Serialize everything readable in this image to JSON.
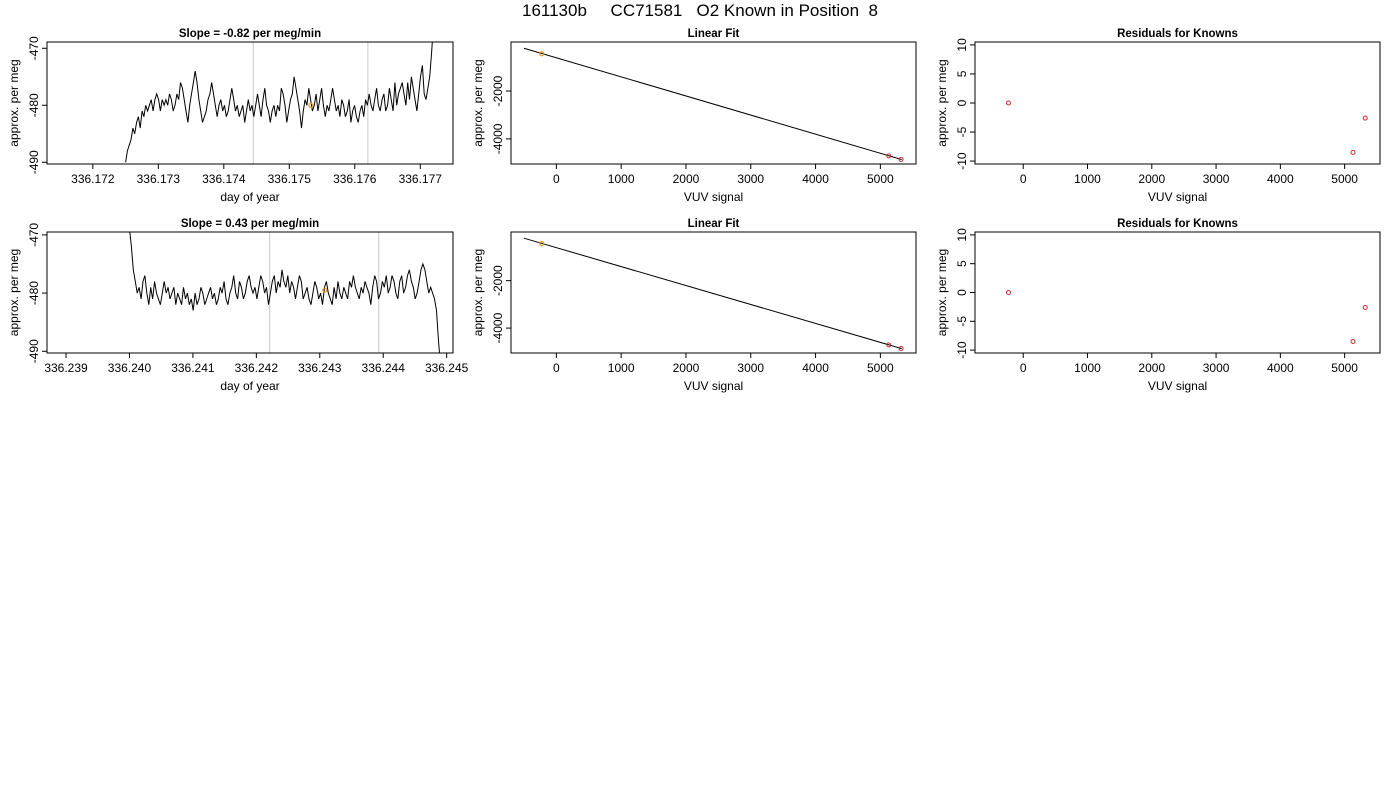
{
  "figure": {
    "title": "161130b     CC71581   O2 Known in Position  8",
    "colors": {
      "line": "#000000",
      "guide": "#c8c8c8",
      "point_highlight": "#e69a1e",
      "point_known": "#cc2a2a",
      "frame": "#000000"
    }
  },
  "chart_data": [
    {
      "id": "drift-1",
      "type": "line",
      "title": "Slope =  -0.82  per meg/min",
      "xlabel": "day of year",
      "ylabel": "approx. per meg",
      "xlim": [
        336.1713,
        336.1775
      ],
      "ylim": [
        -490.3,
        -468.9
      ],
      "xticks": [
        336.172,
        336.173,
        336.174,
        336.175,
        336.176,
        336.177
      ],
      "xtick_labels": [
        "336.172",
        "336.173",
        "336.174",
        "336.175",
        "336.176",
        "336.177"
      ],
      "yticks": [
        -470,
        -480,
        -490
      ],
      "ytick_labels": [
        "-470",
        "-480",
        "-490"
      ],
      "guides_x": [
        336.17445,
        336.1762
      ],
      "highlight_point": {
        "x": 336.17533,
        "y": -480
      },
      "series": [
        {
          "x_start": 336.1725,
          "x_end": 336.1772,
          "y": [
            -490,
            -488,
            -487,
            -486,
            -484,
            -485,
            -483,
            -482,
            -484,
            -481,
            -482,
            -480,
            -481,
            -480,
            -479,
            -481,
            -479,
            -478,
            -479,
            -481,
            -479,
            -480,
            -479,
            -480,
            -478,
            -479,
            -481,
            -480,
            -478,
            -479,
            -476,
            -477,
            -479,
            -481,
            -483,
            -480,
            -478,
            -476,
            -474,
            -476,
            -479,
            -481,
            -483,
            -482,
            -481,
            -479,
            -478,
            -476,
            -478,
            -480,
            -482,
            -480,
            -479,
            -481,
            -480,
            -482,
            -481,
            -479,
            -477,
            -479,
            -481,
            -480,
            -482,
            -481,
            -480,
            -483,
            -481,
            -479,
            -481,
            -480,
            -482,
            -480,
            -478,
            -480,
            -482,
            -479,
            -477,
            -480,
            -481,
            -483,
            -481,
            -480,
            -482,
            -480,
            -481,
            -477,
            -478,
            -480,
            -483,
            -481,
            -479,
            -478,
            -475,
            -477,
            -479,
            -481,
            -484,
            -481,
            -479,
            -480,
            -477,
            -479,
            -481,
            -480,
            -478,
            -481,
            -479,
            -477,
            -480,
            -482,
            -480,
            -481,
            -479,
            -477,
            -479,
            -481,
            -480,
            -482,
            -479,
            -480,
            -482,
            -481,
            -479,
            -483,
            -481,
            -480,
            -482,
            -483,
            -481,
            -480,
            -482,
            -479,
            -480,
            -478,
            -480,
            -481,
            -479,
            -477,
            -480,
            -481,
            -479,
            -478,
            -481,
            -480,
            -477,
            -479,
            -481,
            -476,
            -480,
            -478,
            -477,
            -476,
            -478,
            -480,
            -476,
            -479,
            -475,
            -477,
            -479,
            -481,
            -478,
            -475,
            -473,
            -478,
            -479,
            -477,
            -475,
            -471,
            -466
          ]
        }
      ]
    },
    {
      "id": "fit-1",
      "type": "line",
      "title": "Linear Fit",
      "xlabel": "VUV signal",
      "ylabel": "approx. per meg",
      "xlim": [
        -700,
        5550
      ],
      "ylim": [
        -5050,
        50
      ],
      "xticks": [
        0,
        1000,
        2000,
        3000,
        4000,
        5000
      ],
      "xtick_labels": [
        "0",
        "1000",
        "2000",
        "3000",
        "4000",
        "5000"
      ],
      "yticks": [
        -2000,
        -4000
      ],
      "ytick_labels": [
        "-2000",
        "-4000"
      ],
      "line": {
        "x": [
          -500,
          5330
        ],
        "y": [
          -210,
          -4865
        ]
      },
      "points_known": [
        {
          "x": 5130,
          "y": -4710
        },
        {
          "x": 5320,
          "y": -4860
        }
      ],
      "highlight_point": {
        "x": -225,
        "y": -440
      }
    },
    {
      "id": "resid-1",
      "type": "scatter",
      "title": "Residuals for Knowns",
      "xlabel": "VUV signal",
      "ylabel": "approx. per meg",
      "xlim": [
        -750,
        5550
      ],
      "ylim": [
        -10.5,
        10.5
      ],
      "xticks": [
        0,
        1000,
        2000,
        3000,
        4000,
        5000
      ],
      "xtick_labels": [
        "0",
        "1000",
        "2000",
        "3000",
        "4000",
        "5000"
      ],
      "yticks": [
        10,
        5,
        0,
        -5,
        -10
      ],
      "ytick_labels": [
        "10",
        "5",
        "0",
        "-5",
        "-10"
      ],
      "points_known": [
        {
          "x": -230,
          "y": 0
        },
        {
          "x": 5320,
          "y": -2.6
        },
        {
          "x": 5130,
          "y": -8.5
        }
      ]
    },
    {
      "id": "drift-2",
      "type": "line",
      "title": "Slope =  0.43  per meg/min",
      "xlabel": "day of year",
      "ylabel": "approx. per meg",
      "xlim": [
        336.2387,
        336.2451
      ],
      "ylim": [
        -490.3,
        -469.5
      ],
      "xticks": [
        336.239,
        336.24,
        336.241,
        336.242,
        336.243,
        336.244,
        336.245
      ],
      "xtick_labels": [
        "336.239",
        "336.240",
        "336.241",
        "336.242",
        "336.243",
        "336.244",
        "336.245"
      ],
      "yticks": [
        -470,
        -480,
        -490
      ],
      "ytick_labels": [
        "-470",
        "-480",
        "-490"
      ],
      "guides_x": [
        336.24221,
        336.24393
      ],
      "highlight_point": {
        "x": 336.24308,
        "y": -479.5
      },
      "series": [
        {
          "x_start": 336.24,
          "x_end": 336.2449,
          "y": [
            -469,
            -472,
            -476,
            -478,
            -480,
            -479,
            -481,
            -478,
            -477,
            -480,
            -482,
            -479,
            -481,
            -478,
            -480,
            -481,
            -482,
            -480,
            -478,
            -480,
            -479,
            -481,
            -480,
            -479,
            -482,
            -480,
            -481,
            -482,
            -479,
            -481,
            -480,
            -482,
            -481,
            -483,
            -480,
            -482,
            -481,
            -479,
            -480,
            -482,
            -481,
            -480,
            -479,
            -481,
            -480,
            -482,
            -481,
            -479,
            -480,
            -478,
            -481,
            -482,
            -480,
            -479,
            -477,
            -480,
            -481,
            -478,
            -479,
            -481,
            -480,
            -478,
            -477,
            -479,
            -480,
            -479,
            -481,
            -479,
            -477,
            -478,
            -480,
            -479,
            -482,
            -480,
            -478,
            -477,
            -480,
            -478,
            -479,
            -476,
            -478,
            -479,
            -477,
            -480,
            -478,
            -479,
            -481,
            -479,
            -477,
            -478,
            -481,
            -480,
            -479,
            -481,
            -482,
            -480,
            -478,
            -479,
            -481,
            -480,
            -482,
            -479,
            -478,
            -480,
            -481,
            -482,
            -479,
            -481,
            -478,
            -480,
            -481,
            -479,
            -480,
            -481,
            -478,
            -479,
            -477,
            -479,
            -480,
            -481,
            -479,
            -480,
            -478,
            -479,
            -480,
            -482,
            -479,
            -477,
            -478,
            -481,
            -480,
            -478,
            -479,
            -477,
            -480,
            -479,
            -477,
            -478,
            -480,
            -481,
            -478,
            -477,
            -480,
            -479,
            -477,
            -476,
            -478,
            -479,
            -481,
            -480,
            -478,
            -476,
            -475,
            -476,
            -478,
            -480,
            -479,
            -480,
            -481,
            -483,
            -488,
            -492
          ]
        }
      ]
    },
    {
      "id": "fit-2",
      "type": "line",
      "title": "Linear Fit",
      "xlabel": "VUV signal",
      "ylabel": "approx. per meg",
      "xlim": [
        -700,
        5550
      ],
      "ylim": [
        -5050,
        50
      ],
      "xticks": [
        0,
        1000,
        2000,
        3000,
        4000,
        5000
      ],
      "xtick_labels": [
        "0",
        "1000",
        "2000",
        "3000",
        "4000",
        "5000"
      ],
      "yticks": [
        -2000,
        -4000
      ],
      "ytick_labels": [
        "-2000",
        "-4000"
      ],
      "line": {
        "x": [
          -500,
          5330
        ],
        "y": [
          -210,
          -4865
        ]
      },
      "points_known": [
        {
          "x": 5130,
          "y": -4710
        },
        {
          "x": 5320,
          "y": -4860
        }
      ],
      "highlight_point": {
        "x": -225,
        "y": -440
      }
    },
    {
      "id": "resid-2",
      "type": "scatter",
      "title": "Residuals for Knowns",
      "xlabel": "VUV signal",
      "ylabel": "approx. per meg",
      "xlim": [
        -750,
        5550
      ],
      "ylim": [
        -10.5,
        10.5
      ],
      "xticks": [
        0,
        1000,
        2000,
        3000,
        4000,
        5000
      ],
      "xtick_labels": [
        "0",
        "1000",
        "2000",
        "3000",
        "4000",
        "5000"
      ],
      "yticks": [
        10,
        5,
        0,
        -5,
        -10
      ],
      "ytick_labels": [
        "10",
        "5",
        "0",
        "-5",
        "-10"
      ],
      "points_known": [
        {
          "x": -230,
          "y": 0
        },
        {
          "x": 5320,
          "y": -2.6
        },
        {
          "x": 5130,
          "y": -8.5
        }
      ]
    }
  ]
}
